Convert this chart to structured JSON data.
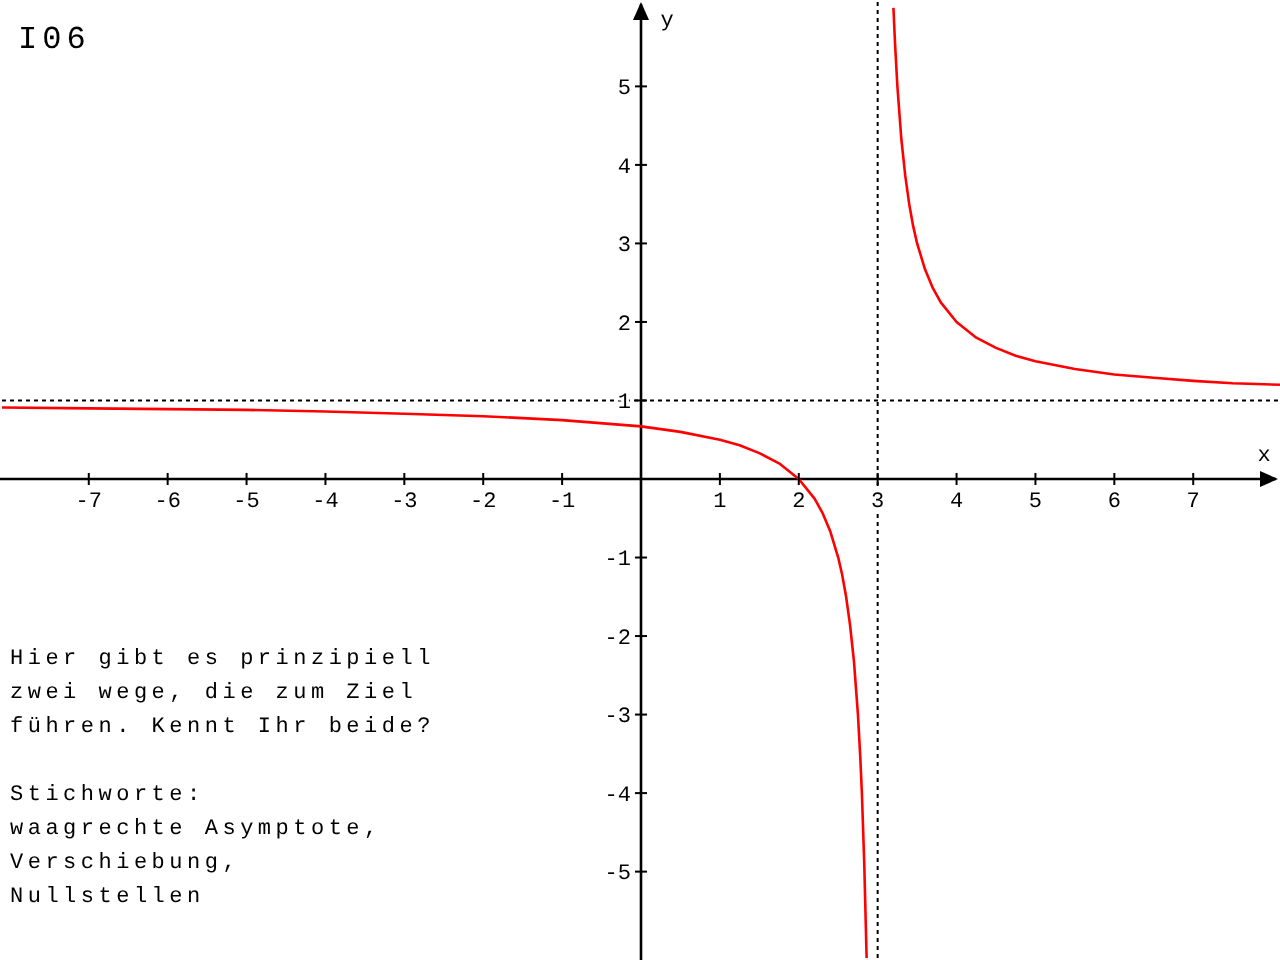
{
  "chart_data": {
    "type": "line",
    "title": "I06",
    "xlabel": "x",
    "ylabel": "y",
    "x": [
      -8.1,
      -7,
      -6,
      -5,
      -4,
      -3,
      -2,
      -1,
      0,
      0.5,
      1,
      1.25,
      1.5,
      1.75,
      2,
      2.2,
      2.3,
      2.4,
      2.5,
      2.55,
      2.6,
      2.65,
      2.7,
      2.75,
      2.78,
      2.8,
      2.83,
      2.86,
      3,
      3.2,
      3.22,
      3.25,
      3.3,
      3.35,
      3.4,
      3.45,
      3.5,
      3.6,
      3.7,
      3.8,
      4,
      4.25,
      4.5,
      4.75,
      5,
      5.5,
      6,
      6.5,
      7,
      7.5,
      8.1
    ],
    "values": [
      0.91,
      0.9,
      0.89,
      0.88,
      0.86,
      0.83,
      0.8,
      0.75,
      0.67,
      0.6,
      0.5,
      0.43,
      0.33,
      0.2,
      0,
      -0.25,
      -0.43,
      -0.67,
      -1,
      -1.22,
      -1.5,
      -1.86,
      -2.33,
      -3,
      -3.55,
      -4,
      -4.9,
      -6.1,
      null,
      6,
      5.55,
      5,
      4.33,
      3.86,
      3.5,
      3.22,
      3,
      2.67,
      2.43,
      2.25,
      2,
      1.8,
      1.67,
      1.57,
      1.5,
      1.4,
      1.33,
      1.29,
      1.25,
      1.22,
      1.2
    ],
    "color": "#ff0000",
    "xlim": [
      -8.1,
      8.1
    ],
    "ylim": [
      -6.1,
      6.1
    ],
    "xticks": [
      -7,
      -6,
      -5,
      -4,
      -3,
      -2,
      -1,
      1,
      2,
      3,
      4,
      5,
      6,
      7
    ],
    "yticks": [
      -5,
      -4,
      -3,
      -2,
      -1,
      1,
      2,
      3,
      4,
      5
    ],
    "ref_lines": [
      {
        "axis": "x",
        "value": 3,
        "color": "#000000",
        "line_style": "dotted"
      },
      {
        "axis": "y",
        "value": 1,
        "color": "#000000",
        "line_style": "dotted"
      }
    ],
    "annotations": [
      "Hier gibt es prinzipiell zwei wege, die zum Ziel führen. Kennt Ihr beide?",
      "Stichworte:\nwaagrechte Asymptote, Verschiebung, Nullstellen"
    ]
  }
}
